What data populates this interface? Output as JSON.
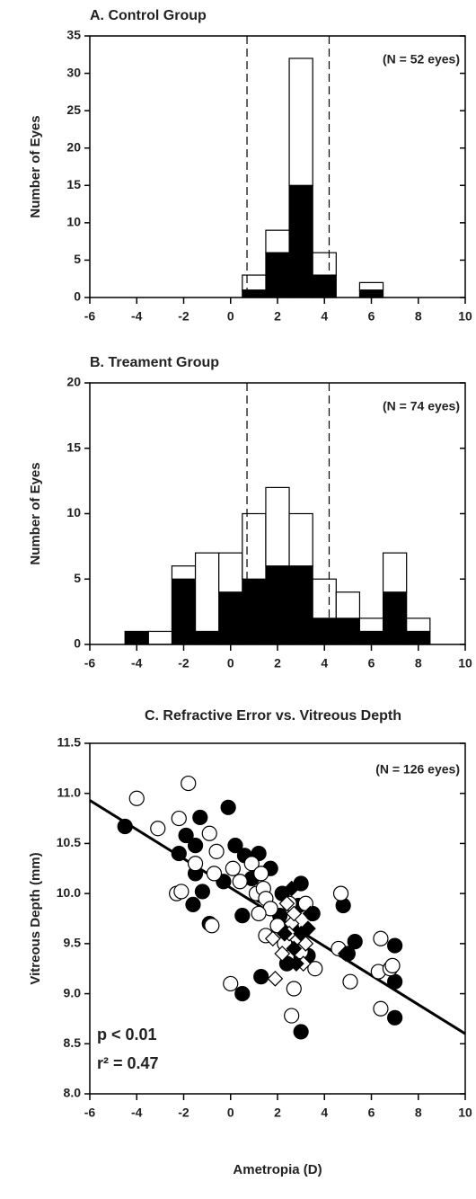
{
  "chart_data": [
    {
      "type": "histogram",
      "title": "A. Control Group",
      "ylabel": "Number of Eyes",
      "annotation": "(N = 52 eyes)",
      "bins": [
        0.5,
        1.5,
        2.5,
        3.5,
        4.5,
        5.5,
        6.5
      ],
      "series": [
        {
          "color": "#000000",
          "values": [
            1,
            6,
            15,
            3,
            0,
            1
          ]
        },
        {
          "color": "#ffffff",
          "values": [
            2,
            3,
            17,
            3,
            0,
            1
          ]
        }
      ],
      "vlines": [
        0.7,
        4.2
      ],
      "xlim": [
        -6,
        10
      ],
      "xticks": [
        -6,
        -4,
        -2,
        0,
        2,
        4,
        6,
        8,
        10
      ],
      "ylim": [
        0,
        35
      ],
      "yticks": [
        0,
        5,
        10,
        15,
        20,
        25,
        30,
        35
      ]
    },
    {
      "type": "histogram",
      "title": "B. Treament Group",
      "ylabel": "Number of Eyes",
      "annotation": "(N = 74 eyes)",
      "bins": [
        -4.5,
        -3.5,
        -2.5,
        -1.5,
        -0.5,
        0.5,
        1.5,
        2.5,
        3.5,
        4.5,
        5.5,
        6.5,
        7.5,
        8.5
      ],
      "series": [
        {
          "color": "#000000",
          "values": [
            1,
            0,
            5,
            1,
            4,
            5,
            6,
            6,
            2,
            2,
            1,
            4,
            1
          ]
        },
        {
          "color": "#ffffff",
          "values": [
            0,
            1,
            1,
            6,
            3,
            5,
            6,
            4,
            3,
            2,
            1,
            3,
            1
          ]
        }
      ],
      "vlines": [
        0.7,
        4.2
      ],
      "xlim": [
        -6,
        10
      ],
      "xticks": [
        -6,
        -4,
        -2,
        0,
        2,
        4,
        6,
        8,
        10
      ],
      "ylim": [
        0,
        20
      ],
      "yticks": [
        0,
        5,
        10,
        15,
        20
      ]
    },
    {
      "type": "scatter",
      "title": "C. Refractive Error vs. Vitreous Depth",
      "xlabel": "Ametropia (D)",
      "ylabel": "Vitreous Depth (mm)",
      "annotations": [
        "(N = 126 eyes)",
        "p < 0.01",
        "r² = 0.47"
      ],
      "series": [
        {
          "marker": "circle",
          "color": "#000000",
          "x": [
            -4.5,
            -2.2,
            -1.9,
            -1.3,
            -1.5,
            -1.5,
            -1.2,
            -1.6,
            -0.9,
            -0.1,
            0.2,
            0.6,
            -0.3,
            0.9,
            0.5,
            0.5,
            1.2,
            1.7,
            1.3,
            2.2,
            2.1,
            2.6,
            3.0,
            3.5,
            3.0,
            3.3,
            1.3,
            3.0,
            2.9,
            4.8,
            5.3,
            5.0,
            7.0,
            7.0,
            7.0,
            2.4
          ],
          "y": [
            10.67,
            10.4,
            10.58,
            10.76,
            10.48,
            10.2,
            10.02,
            9.89,
            9.7,
            10.86,
            10.48,
            10.38,
            10.12,
            10.15,
            9.78,
            9.0,
            10.4,
            10.25,
            9.98,
            10.0,
            9.78,
            9.65,
            10.1,
            9.8,
            9.35,
            9.38,
            9.17,
            8.62,
            9.88,
            9.88,
            9.52,
            9.4,
            9.48,
            9.12,
            8.76,
            9.3
          ]
        },
        {
          "marker": "circle",
          "color": "#ffffff",
          "x": [
            -4.0,
            -3.1,
            -2.2,
            -1.8,
            -2.3,
            -2.1,
            -1.5,
            -0.8,
            -0.9,
            -0.6,
            -0.7,
            0.1,
            0.4,
            0.0,
            0.9,
            1.1,
            1.3,
            1.4,
            1.5,
            1.7,
            1.2,
            1.5,
            2.0,
            2.5,
            2.3,
            2.7,
            2.6,
            3.0,
            3.2,
            3.6,
            4.7,
            4.6,
            5.1,
            6.3,
            6.4,
            6.4,
            6.8,
            6.9
          ],
          "y": [
            10.95,
            10.65,
            10.75,
            11.1,
            10.0,
            10.02,
            10.3,
            9.68,
            10.6,
            10.42,
            10.2,
            10.25,
            10.12,
            9.1,
            10.3,
            10.0,
            10.2,
            10.05,
            9.95,
            9.85,
            9.8,
            9.58,
            9.68,
            9.9,
            9.5,
            9.05,
            8.78,
            9.42,
            9.9,
            9.25,
            10.0,
            9.45,
            9.12,
            9.22,
            9.55,
            8.85,
            9.25,
            9.28
          ]
        },
        {
          "marker": "diamond",
          "color": "#ffffff",
          "x": [
            2.4,
            2.6,
            1.8,
            2.2,
            3.2,
            2.8,
            1.9,
            3.1,
            2.7,
            2.5
          ],
          "y": [
            9.9,
            9.7,
            9.55,
            9.4,
            9.5,
            9.55,
            9.15,
            9.3,
            9.8,
            9.6
          ]
        },
        {
          "marker": "diamond",
          "color": "#000000",
          "x": [
            2.6,
            3.3,
            3.4,
            2.3,
            2.8,
            4.9,
            3.0,
            2.7
          ],
          "y": [
            10.05,
            9.65,
            9.8,
            9.6,
            9.3,
            9.4,
            9.6,
            9.45
          ]
        }
      ],
      "fit_line": {
        "x": [
          -6,
          10
        ],
        "y": [
          10.93,
          8.6
        ]
      },
      "xlim": [
        -6,
        10
      ],
      "xticks": [
        -6,
        -4,
        -2,
        0,
        2,
        4,
        6,
        8,
        10
      ],
      "ylim": [
        8,
        11.5
      ],
      "yticks": [
        {
          "value": 8,
          "label": "8.0"
        },
        8.5,
        {
          "value": 9,
          "label": "9.0"
        },
        9.5,
        {
          "value": 10,
          "label": "10.0"
        },
        10.5,
        {
          "value": 11,
          "label": "11.0"
        },
        11.5
      ]
    }
  ]
}
